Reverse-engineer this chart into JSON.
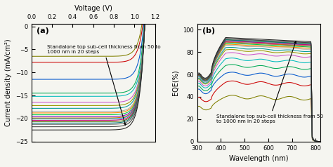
{
  "n_steps": 20,
  "jv_xlim": [
    0.0,
    1.2
  ],
  "jv_ylim": [
    -25,
    0.5
  ],
  "jv_xlabel": "Voltage (V)",
  "jv_ylabel": "Current density (mA/cm²)",
  "jv_xticks": [
    0.0,
    0.2,
    0.4,
    0.6,
    0.8,
    1.0,
    1.2
  ],
  "jv_yticks": [
    0,
    -5,
    -10,
    -15,
    -20,
    -25
  ],
  "jv_label": "(a)",
  "jv_annotation": "Standalone top sub-cell thickness from 50 to\n1000 nm in 20 steps",
  "eqe_xlim": [
    300,
    820
  ],
  "eqe_ylim": [
    0,
    105
  ],
  "eqe_xlabel": "Wavelength (nm)",
  "eqe_ylabel": "EQE(%)",
  "eqe_xticks": [
    300,
    400,
    500,
    600,
    700,
    800
  ],
  "eqe_yticks": [
    0,
    20,
    40,
    60,
    80,
    100
  ],
  "eqe_label": "(b)",
  "eqe_annotation": "Standalone top sub-cell thickness from 50\nto 1000 nm in 20 steps",
  "colors": [
    "#808000",
    "#cc0000",
    "#0055cc",
    "#00aa55",
    "#00bbbb",
    "#cc55cc",
    "#999900",
    "#009999",
    "#aaaaaa",
    "#ff8800",
    "#00cc44",
    "#7700bb",
    "#cc7700",
    "#0099cc",
    "#cc0077",
    "#556600",
    "#007777",
    "#777777",
    "#444444",
    "#222222"
  ],
  "bg_color": "#f5f5f0",
  "jsc_vals": [
    -6.5,
    -7.8,
    -11.5,
    -14.5,
    -15.2,
    -16.5,
    -17.2,
    -17.8,
    -18.5,
    -18.8,
    -19.2,
    -19.6,
    -19.9,
    -20.1,
    -20.4,
    -20.7,
    -21.0,
    -21.3,
    -21.8,
    -22.5
  ],
  "voc_vals": [
    1.07,
    1.08,
    1.09,
    1.095,
    1.1,
    1.1,
    1.1,
    1.1,
    1.1,
    1.1,
    1.1,
    1.1,
    1.1,
    1.1,
    1.1,
    1.1,
    1.1,
    1.1,
    1.1,
    1.1
  ],
  "eqe_start300": [
    35,
    44,
    52,
    55,
    58,
    60,
    62,
    63,
    64,
    65,
    65,
    65,
    65,
    65,
    66,
    66,
    67,
    67,
    67,
    68
  ],
  "eqe_dip350": [
    30,
    38,
    46,
    49,
    52,
    54,
    56,
    57,
    58,
    59,
    59,
    59,
    59,
    59,
    60,
    60,
    61,
    61,
    61,
    62
  ],
  "eqe_peak": [
    40,
    53,
    61,
    68,
    74,
    79,
    82,
    84,
    86,
    87,
    88,
    89,
    89,
    90,
    90,
    91,
    91,
    92,
    92,
    93
  ],
  "eqe_band_edge_wl": 780
}
